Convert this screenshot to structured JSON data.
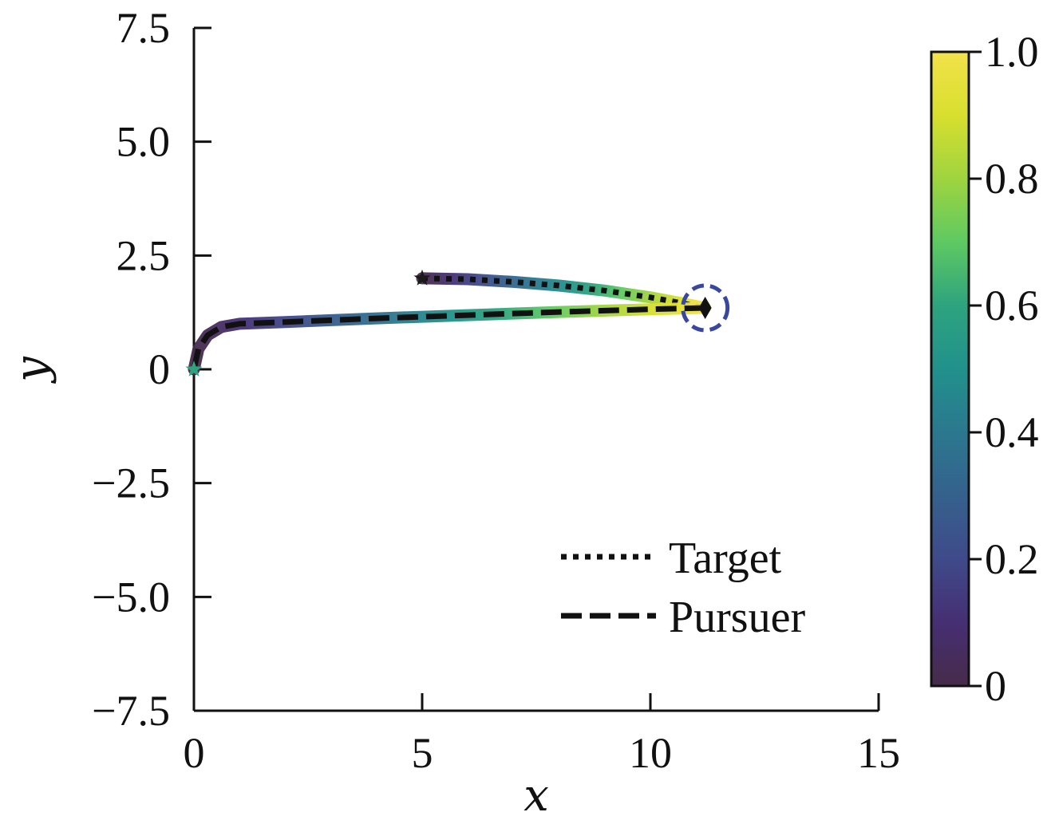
{
  "chart_data": {
    "type": "line",
    "title": "",
    "xlabel": "x",
    "ylabel": "y",
    "xlim": [
      0,
      15
    ],
    "ylim": [
      -7.5,
      7.5
    ],
    "x_ticks": [
      0,
      5,
      10,
      15
    ],
    "x_tick_labels": [
      "0",
      "5",
      "10",
      "15"
    ],
    "y_ticks": [
      -7.5,
      -5.0,
      -2.5,
      0,
      2.5,
      5.0,
      7.5
    ],
    "y_tick_labels": [
      "−7.5",
      "−5.0",
      "−2.5",
      "0",
      "2.5",
      "5.0",
      "7.5"
    ],
    "grid": false,
    "legend_position": "lower-right",
    "series": [
      {
        "name": "Target",
        "style": "dotted",
        "color": "#111111",
        "start_marker": "star",
        "x": [
          5.0,
          6.0,
          7.0,
          8.0,
          9.0,
          10.0,
          10.6,
          11.2
        ],
        "y": [
          2.0,
          1.98,
          1.92,
          1.84,
          1.73,
          1.58,
          1.47,
          1.35
        ]
      },
      {
        "name": "Pursuer",
        "style": "dashed",
        "color": "#111111",
        "start_marker": "star",
        "x": [
          0.0,
          0.1,
          0.3,
          0.6,
          1.0,
          2.0,
          4.0,
          6.0,
          8.0,
          10.0,
          11.2
        ],
        "y": [
          0.0,
          0.45,
          0.75,
          0.93,
          1.0,
          1.04,
          1.12,
          1.19,
          1.26,
          1.32,
          1.35
        ]
      }
    ],
    "end_marker": {
      "shape": "diamond",
      "x": 11.2,
      "y": 1.35,
      "color": "#111111"
    },
    "capture_circle": {
      "x": 11.2,
      "y": 1.35,
      "color": "#3a47a0",
      "style": "dashed"
    },
    "colorbar": {
      "min": 0,
      "max": 1.0,
      "ticks": [
        0,
        0.2,
        0.4,
        0.6,
        0.8,
        1.0
      ],
      "tick_labels": [
        "0",
        "0.2",
        "0.4",
        "0.6",
        "0.8",
        "1.0"
      ],
      "colormap": [
        "#472b4a",
        "#462f73",
        "#3f4a8a",
        "#35618d",
        "#2b788e",
        "#21918c",
        "#2ea37e",
        "#5ec962",
        "#9fd43f",
        "#d8df2e",
        "#f2e24a"
      ]
    },
    "legend": [
      "Target",
      "Pursuer"
    ]
  }
}
